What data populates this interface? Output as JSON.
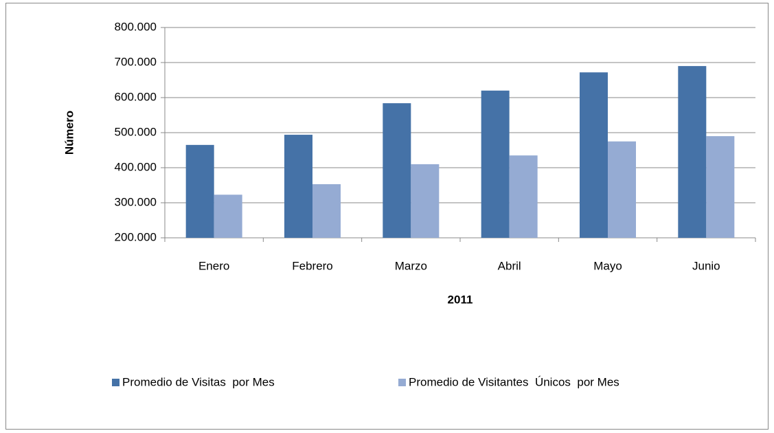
{
  "chart_data": {
    "type": "bar",
    "categories": [
      "Enero",
      "Febrero",
      "Marzo",
      "Abril",
      "Mayo",
      "Junio"
    ],
    "series": [
      {
        "name": "Promedio de Visitas  por Mes",
        "color": "#4572a7",
        "values": [
          465000,
          494000,
          584000,
          620000,
          672000,
          690000
        ]
      },
      {
        "name": "Promedio de Visitantes  Únicos  por Mes",
        "color": "#95abd3",
        "values": [
          323000,
          353000,
          410000,
          435000,
          475000,
          490000
        ]
      }
    ],
    "ylim": [
      200000,
      800000
    ],
    "yticks": [
      {
        "value": 200000,
        "label": "200.000"
      },
      {
        "value": 300000,
        "label": "300.000"
      },
      {
        "value": 400000,
        "label": "400.000"
      },
      {
        "value": 500000,
        "label": "500.000"
      },
      {
        "value": 600000,
        "label": "600.000"
      },
      {
        "value": 700000,
        "label": "700.000"
      },
      {
        "value": 800000,
        "label": "800.000"
      }
    ],
    "xlabel": "2011",
    "ylabel": "Número",
    "grid": true,
    "legend": "bottom"
  }
}
